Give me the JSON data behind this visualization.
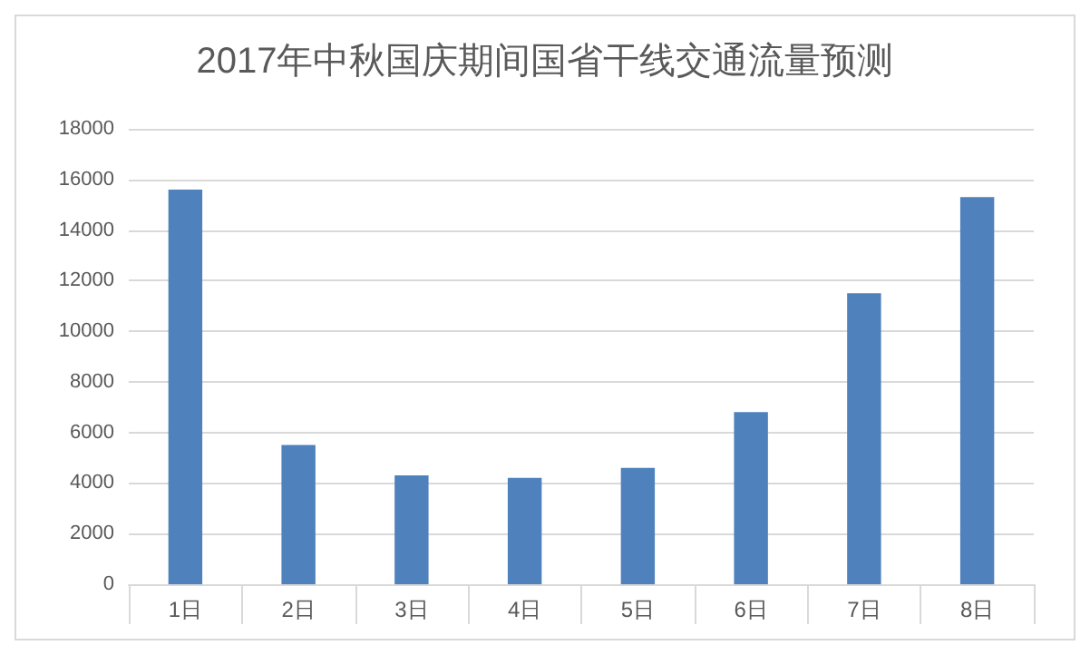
{
  "chart_data": {
    "type": "bar",
    "title": "2017年中秋国庆期间国省干线交通流量预测",
    "categories": [
      "1日",
      "2日",
      "3日",
      "4日",
      "5日",
      "6日",
      "7日",
      "8日"
    ],
    "values": [
      15600,
      5500,
      4300,
      4200,
      4600,
      6800,
      11500,
      15300
    ],
    "color": "#4f81bd",
    "ylim": [
      0,
      18000
    ],
    "yticks": [
      0,
      2000,
      4000,
      6000,
      8000,
      10000,
      12000,
      14000,
      16000,
      18000
    ],
    "grid": "y"
  }
}
